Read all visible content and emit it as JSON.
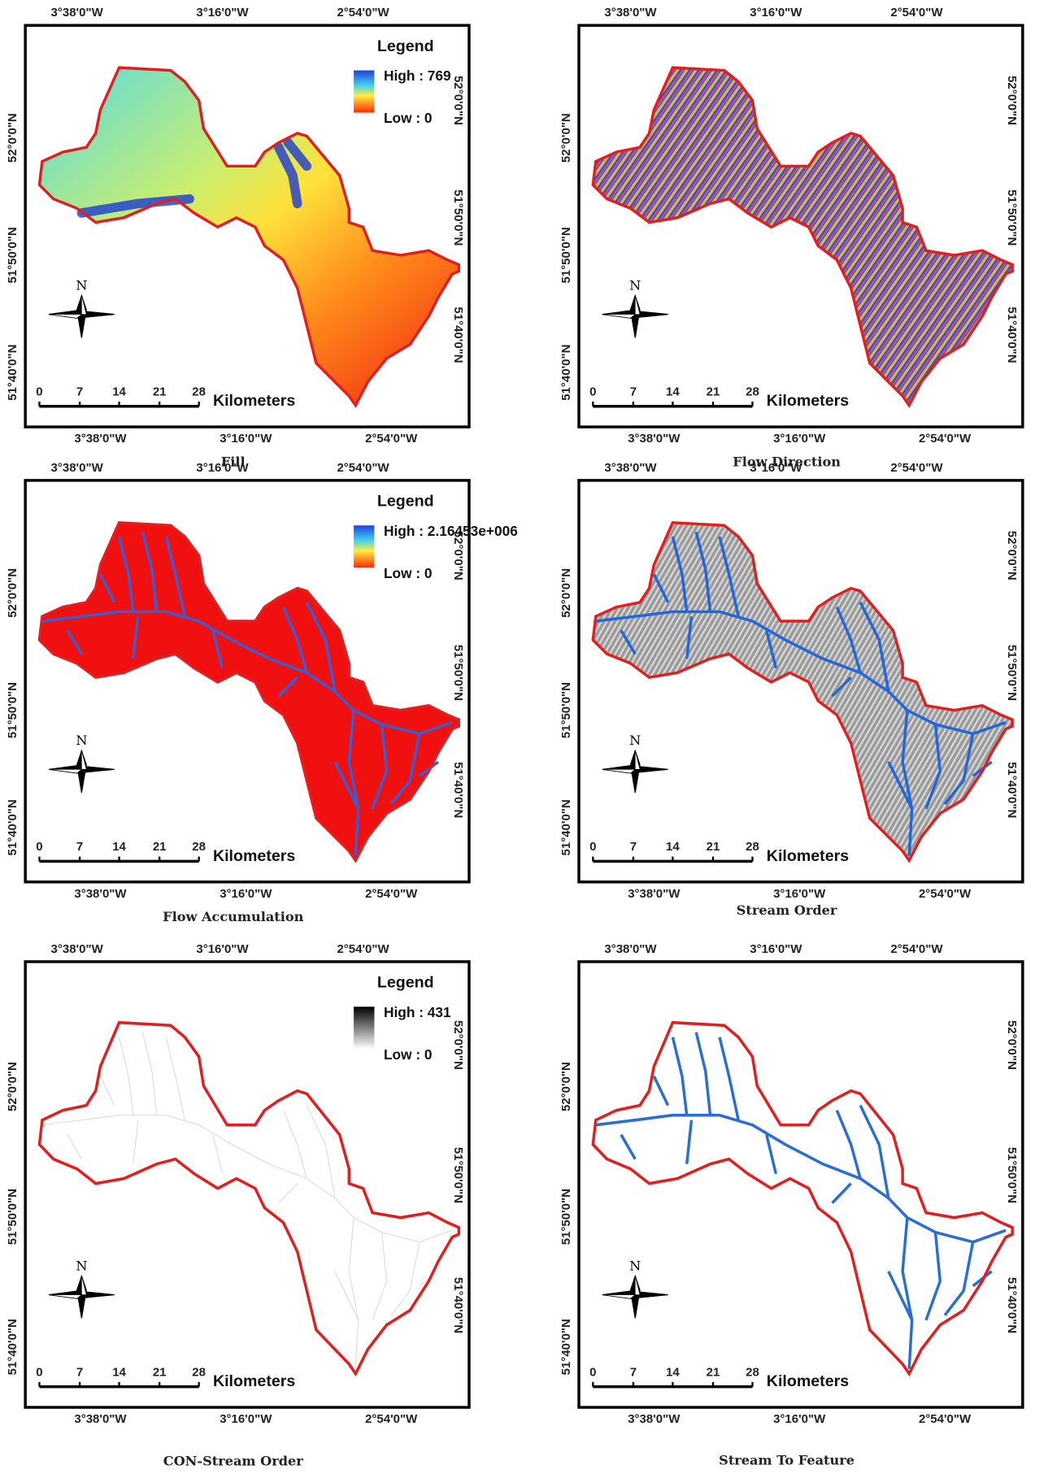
{
  "panels": [
    {
      "caption": "Fill",
      "legend": {
        "title": "Legend",
        "high": "High : 769",
        "low": "Low : 0"
      }
    },
    {
      "caption": "Flow Direction"
    },
    {
      "caption": "Flow Accumulation",
      "legend": {
        "title": "Legend",
        "high": "High : 2.16453e+006",
        "low": "Low : 0"
      }
    },
    {
      "caption": "Stream Order"
    },
    {
      "caption": "CON-Stream Order",
      "legend": {
        "title": "Legend",
        "high": "High : 431",
        "low": "Low : 0"
      }
    },
    {
      "caption": "Stream To Feature"
    }
  ],
  "longitude_labels": [
    "3°38'0\"W",
    "3°16'0\"W",
    "2°54'0\"W"
  ],
  "latitude_labels": [
    "52°0'0\"N",
    "51°50'0\"N",
    "51°40'0\"N"
  ],
  "north": "N",
  "scale_bar": {
    "labels": [
      "0",
      "7",
      "14",
      "21",
      "28"
    ],
    "unit": "Kilometers"
  }
}
